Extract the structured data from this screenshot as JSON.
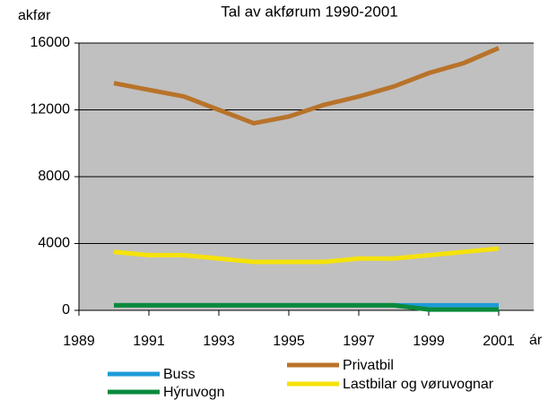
{
  "chart_data": {
    "type": "line",
    "title": "Tal av akførum 1990-2001",
    "y_label": "akfør",
    "x_label": "ár",
    "x": [
      1990,
      1991,
      1992,
      1993,
      1994,
      1995,
      1996,
      1997,
      1998,
      1999,
      2000,
      2001
    ],
    "series": [
      {
        "name": "Buss",
        "color": "#1e9bd7",
        "values": [
          300,
          300,
          300,
          300,
          300,
          300,
          300,
          300,
          300,
          300,
          300,
          300
        ]
      },
      {
        "name": "Privatbil",
        "color": "#b8732a",
        "values": [
          13600,
          13200,
          12800,
          12000,
          11200,
          11600,
          12300,
          12800,
          13400,
          14200,
          14800,
          15700
        ]
      },
      {
        "name": "Hýruvogn",
        "color": "#0a8a3c",
        "values": [
          300,
          300,
          300,
          300,
          300,
          300,
          300,
          300,
          300,
          50,
          50,
          50
        ]
      },
      {
        "name": "Lastbilar og vøruvognar",
        "color": "#f5e20a",
        "values": [
          3500,
          3300,
          3300,
          3100,
          2900,
          2900,
          2900,
          3100,
          3100,
          3300,
          3500,
          3700
        ]
      }
    ],
    "xlim": [
      1989,
      2002
    ],
    "xticks": [
      1989,
      1991,
      1993,
      1995,
      1997,
      1999,
      2001
    ],
    "ylim": [
      0,
      16000
    ],
    "yticks": [
      0,
      4000,
      8000,
      12000,
      16000
    ],
    "grid": true,
    "plot_background": "#c0c0c0",
    "legend": "bottom"
  }
}
